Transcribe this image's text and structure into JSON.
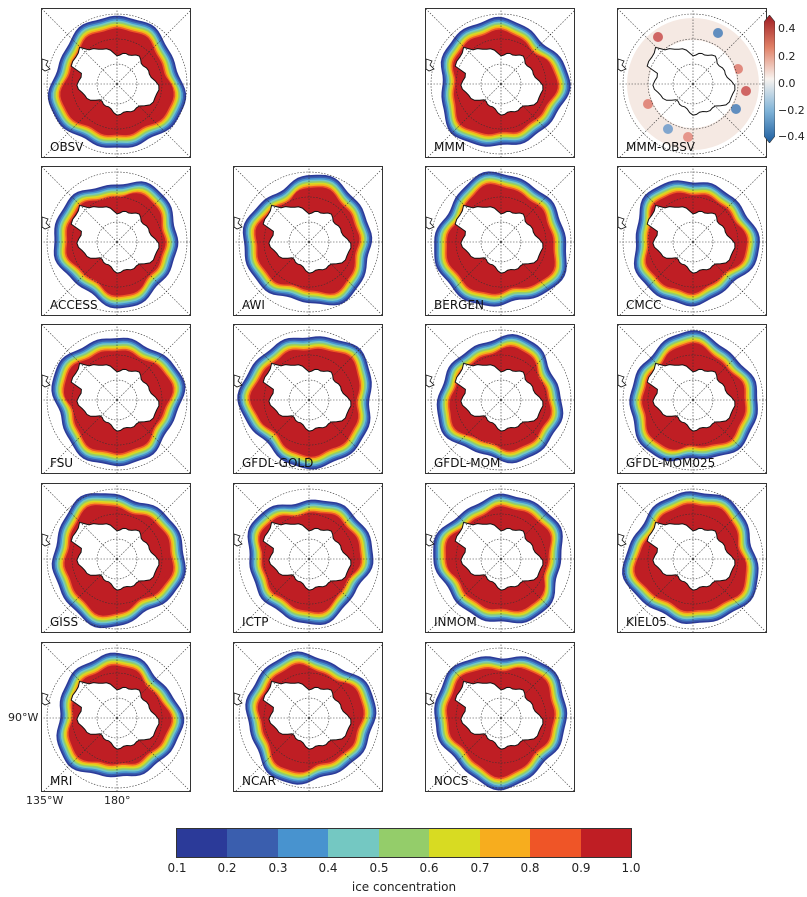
{
  "panels": [
    {
      "label": "OBSV",
      "kind": "obs"
    },
    {
      "label": "MMM",
      "kind": "model"
    },
    {
      "label": "MMM-OBSV",
      "kind": "diff"
    },
    {
      "label": "ACCESS",
      "kind": "model"
    },
    {
      "label": "AWI",
      "kind": "model"
    },
    {
      "label": "BERGEN",
      "kind": "model"
    },
    {
      "label": "CMCC",
      "kind": "model"
    },
    {
      "label": "FSU",
      "kind": "model"
    },
    {
      "label": "GFDL-GOLD",
      "kind": "model"
    },
    {
      "label": "GFDL-MOM",
      "kind": "model"
    },
    {
      "label": "GFDL-MOM025",
      "kind": "model"
    },
    {
      "label": "GISS",
      "kind": "model"
    },
    {
      "label": "ICTP",
      "kind": "model"
    },
    {
      "label": "INMOM",
      "kind": "model"
    },
    {
      "label": "KIEL05",
      "kind": "model"
    },
    {
      "label": "MRI",
      "kind": "model"
    },
    {
      "label": "NCAR",
      "kind": "model"
    },
    {
      "label": "NOCS",
      "kind": "model"
    }
  ],
  "axis_labels": {
    "lat": "90°W",
    "lon_left": "135°W",
    "lon_bottom": "180°"
  },
  "colorbar": {
    "title": "ice concentration",
    "ticks": [
      "0.1",
      "0.2",
      "0.3",
      "0.4",
      "0.5",
      "0.6",
      "0.7",
      "0.8",
      "0.9",
      "1.0"
    ],
    "colors": [
      "#2b3a99",
      "#3a5eae",
      "#4893cf",
      "#74c8c2",
      "#94cd6a",
      "#d8db22",
      "#f7ad1e",
      "#ef5527",
      "#bf1e24"
    ]
  },
  "diff_colorbar": {
    "ticks": [
      "0.4",
      "0.2",
      "0.0",
      "−0.2",
      "−0.4"
    ],
    "colors": [
      "#9e1b22",
      "#e08066",
      "#f8f3ef",
      "#7fb3d8",
      "#1c5c9e"
    ]
  }
}
